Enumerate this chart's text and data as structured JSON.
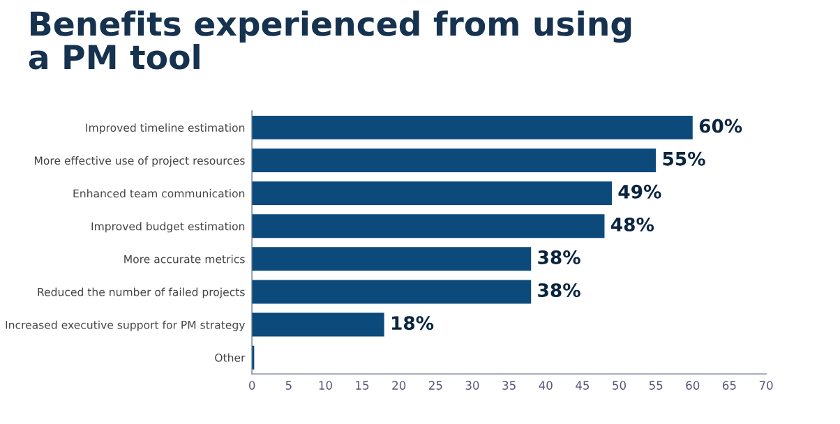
{
  "chart_data": {
    "type": "bar",
    "orientation": "horizontal",
    "title": "Benefits experienced from using\na PM tool",
    "categories": [
      "Improved timeline estimation",
      "More effective use of project resources",
      "Enhanced team communication",
      "Improved budget estimation",
      "More accurate metrics",
      "Reduced the number of failed projects",
      "Increased executive support for PM strategy",
      "Other"
    ],
    "values": [
      60,
      55,
      49,
      48,
      38,
      38,
      18,
      0.3
    ],
    "value_labels": [
      "60%",
      "55%",
      "49%",
      "48%",
      "38%",
      "38%",
      "18%",
      null
    ],
    "color": "#0d4a7c",
    "xlim": [
      0,
      70
    ],
    "xticks": [
      0,
      5,
      10,
      15,
      20,
      25,
      30,
      35,
      40,
      45,
      50,
      55,
      60,
      65,
      70
    ],
    "grid": false,
    "legend": false
  }
}
